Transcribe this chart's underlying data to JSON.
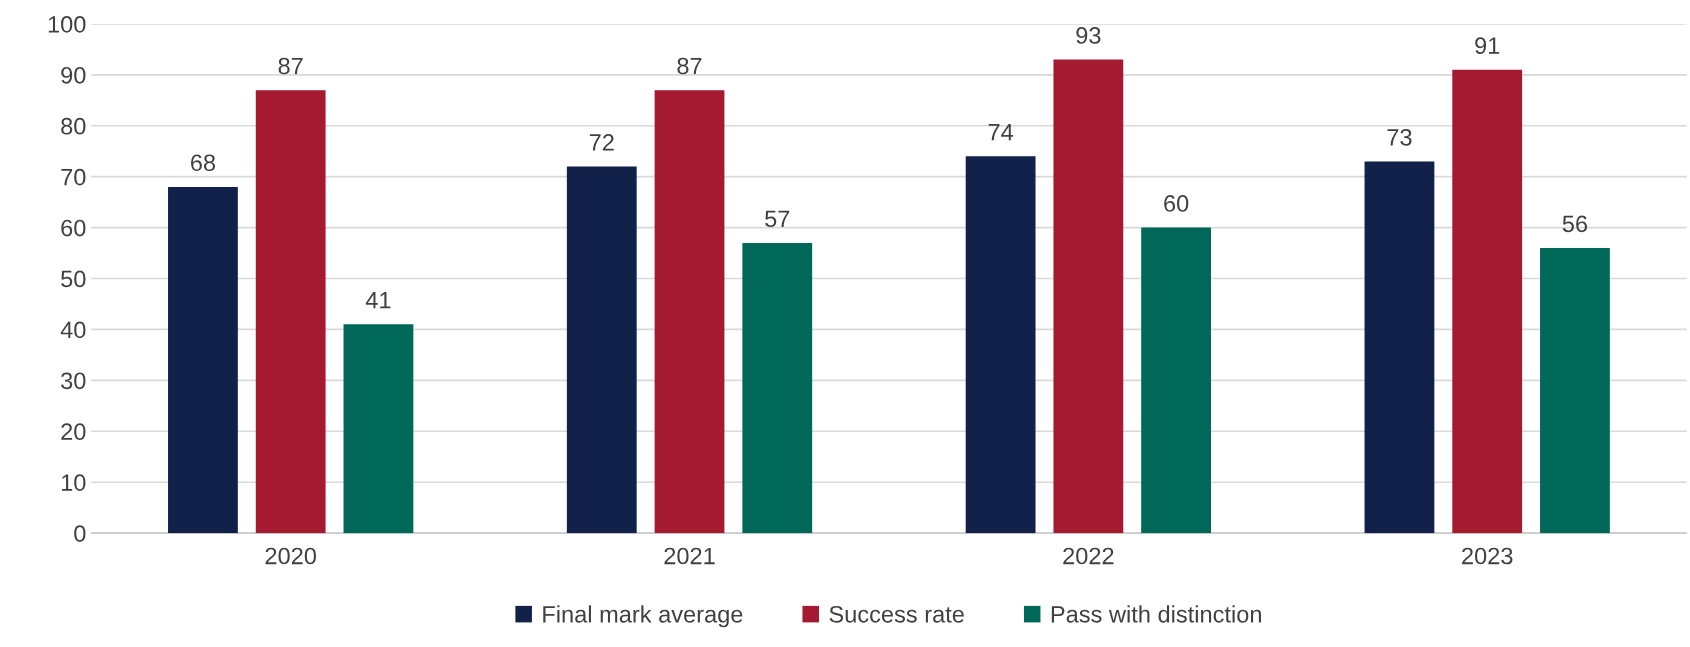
{
  "chart_data": {
    "type": "bar",
    "categories": [
      "2020",
      "2021",
      "2022",
      "2023"
    ],
    "series": [
      {
        "name": "Final mark average",
        "color": "#12214a",
        "values": [
          68,
          72,
          74,
          73
        ]
      },
      {
        "name": "Success rate",
        "color": "#a51931",
        "values": [
          87,
          87,
          93,
          91
        ]
      },
      {
        "name": "Pass with distinction",
        "color": "#006858",
        "values": [
          41,
          57,
          60,
          56
        ]
      }
    ],
    "ylim": [
      0,
      100
    ],
    "yticks": [
      0,
      10,
      20,
      30,
      40,
      50,
      60,
      70,
      80,
      90,
      100
    ],
    "grid": "y",
    "legend": "bottom",
    "data_labels": true
  }
}
